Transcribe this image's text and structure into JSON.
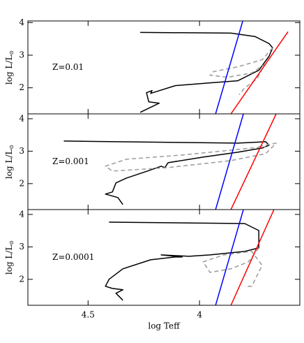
{
  "chart_data": [
    {
      "type": "line",
      "annotation": "Z=0.01",
      "ylabel": "log L/L",
      "ylabel_sub": "⊙",
      "xlim": [
        4.77,
        3.55
      ],
      "ylim": [
        1.2,
        4.05
      ],
      "xticks": [
        4.5,
        4
      ],
      "yticks": [
        2,
        3,
        4
      ],
      "show_xtick_labels": false,
      "series": [
        {
          "color": "#000000",
          "dashed": false,
          "x": [
            4.266,
            4.181,
            4.228,
            4.238,
            4.213,
            4.219,
            4.109,
            3.953,
            3.828,
            3.734,
            3.688,
            3.672,
            3.688,
            3.75,
            3.859,
            4.266
          ],
          "values": [
            1.247,
            1.527,
            1.57,
            1.849,
            1.914,
            1.828,
            2.065,
            2.151,
            2.215,
            2.538,
            2.968,
            3.226,
            3.355,
            3.57,
            3.677,
            3.699
          ]
        },
        {
          "color": "#a0a0a0",
          "dashed": true,
          "x": [
            3.672,
            3.719,
            3.828,
            3.938,
            3.953,
            3.875,
            3.766,
            3.709,
            3.741,
            3.797,
            3.822
          ],
          "values": [
            3.226,
            2.86,
            2.645,
            2.495,
            2.387,
            2.323,
            2.452,
            2.71,
            2.28,
            2.0,
            1.785
          ]
        },
        {
          "color": "#0000ff",
          "dashed": false,
          "x": [
            3.928,
            3.806
          ],
          "values": [
            1.2,
            4.05
          ]
        },
        {
          "color": "#ff0000",
          "dashed": false,
          "x": [
            3.859,
            3.603
          ],
          "values": [
            1.2,
            3.72
          ]
        }
      ]
    },
    {
      "type": "line",
      "annotation": "Z=0.001",
      "ylabel": "log L/L",
      "ylabel_sub": "⊙",
      "xlim": [
        4.77,
        3.55
      ],
      "ylim": [
        1.2,
        4.15
      ],
      "xticks": [
        4.5,
        4
      ],
      "yticks": [
        2,
        3,
        4
      ],
      "show_xtick_labels": false,
      "series": [
        {
          "color": "#000000",
          "dashed": false,
          "x": [
            4.344,
            4.366,
            4.422,
            4.391,
            4.375,
            4.328,
            4.234,
            4.172,
            4.156,
            4.141,
            3.984,
            3.828,
            3.719,
            3.688,
            3.703,
            3.828,
            4.609
          ],
          "values": [
            1.355,
            1.57,
            1.677,
            1.742,
            2.022,
            2.172,
            2.387,
            2.538,
            2.495,
            2.645,
            2.817,
            2.968,
            3.097,
            3.183,
            3.29,
            3.247,
            3.312
          ]
        },
        {
          "color": "#a0a0a0",
          "dashed": true,
          "x": [
            3.734,
            3.656,
            3.703,
            3.859,
            4.141,
            4.391,
            4.422,
            4.328,
            4.078,
            3.859,
            3.703
          ],
          "values": [
            3.14,
            3.247,
            2.925,
            2.71,
            2.495,
            2.387,
            2.538,
            2.753,
            2.882,
            3.032,
            3.14
          ]
        },
        {
          "color": "#0000ff",
          "dashed": false,
          "x": [
            3.928,
            3.803
          ],
          "values": [
            1.2,
            4.15
          ]
        },
        {
          "color": "#ff0000",
          "dashed": false,
          "x": [
            3.859,
            3.656
          ],
          "values": [
            1.2,
            4.15
          ]
        }
      ]
    },
    {
      "type": "line",
      "annotation": "Z=0.0001",
      "ylabel": "log L/L",
      "ylabel_sub": "⊙",
      "xlabel": "log Teff",
      "xlim": [
        4.77,
        3.55
      ],
      "ylim": [
        1.2,
        4.15
      ],
      "xticks": [
        4.5,
        4
      ],
      "yticks": [
        2,
        3,
        4
      ],
      "show_xtick_labels": true,
      "series": [
        {
          "color": "#000000",
          "dashed": false,
          "x": [
            4.344,
            4.375,
            4.344,
            4.391,
            4.422,
            4.406,
            4.344,
            4.219,
            4.109,
            4.078,
            4.172,
            4.047,
            3.953,
            3.797,
            3.734,
            3.734,
            3.797,
            4.406
          ],
          "values": [
            1.355,
            1.57,
            1.677,
            1.72,
            1.785,
            2.0,
            2.323,
            2.602,
            2.688,
            2.688,
            2.753,
            2.71,
            2.753,
            2.86,
            2.968,
            3.505,
            3.72,
            3.763
          ]
        },
        {
          "color": "#a0a0a0",
          "dashed": true,
          "x": [
            3.734,
            3.781,
            3.859,
            3.953,
            3.984,
            3.891,
            3.766,
            3.719,
            3.766,
            3.797
          ],
          "values": [
            2.968,
            2.538,
            2.323,
            2.215,
            2.538,
            2.753,
            2.86,
            2.43,
            1.785,
            1.785
          ]
        },
        {
          "color": "#0000ff",
          "dashed": false,
          "x": [
            3.928,
            3.803
          ],
          "values": [
            1.2,
            4.15
          ]
        },
        {
          "color": "#ff0000",
          "dashed": false,
          "x": [
            3.859,
            3.666
          ],
          "values": [
            1.2,
            4.15
          ]
        }
      ]
    }
  ]
}
